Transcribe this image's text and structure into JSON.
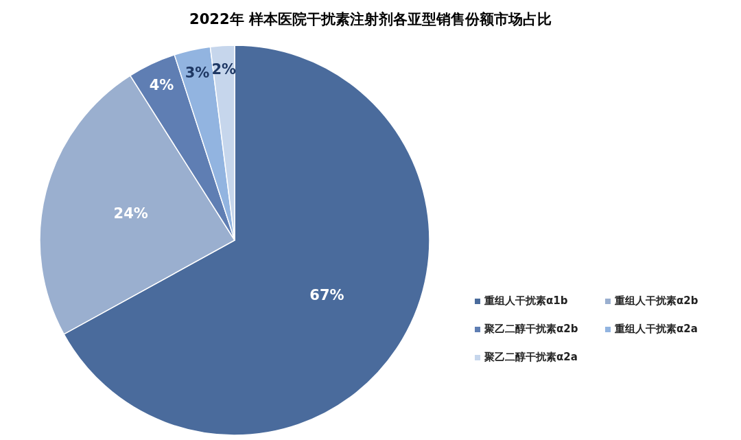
{
  "chart_data": {
    "type": "pie",
    "title": "2022年 样本医院干扰素注射剂各亚型销售份额市场占比",
    "categories": [
      "重组人干扰素α1b",
      "重组人干扰素α2b",
      "聚乙二醇干扰素α2b",
      "重组人干扰素α2a",
      "聚乙二醇干扰素α2a"
    ],
    "values": [
      67,
      24,
      4,
      3,
      2
    ],
    "colors": [
      "#4a6b9c",
      "#9aafcf",
      "#5f7eb3",
      "#92b4e0",
      "#c6d6ec"
    ],
    "value_labels": [
      "67%",
      "24%",
      "4%",
      "3%",
      "2%"
    ],
    "legend": "right"
  }
}
